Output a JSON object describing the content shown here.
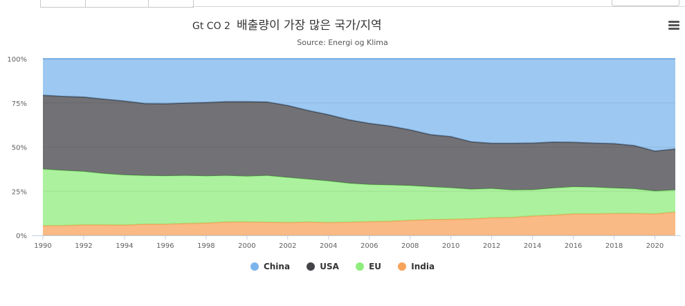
{
  "chart_data": {
    "type": "area",
    "stacking": "percent",
    "title_unit": "Gt CO 2",
    "title": "배출량이 가장 많은 국가/지역",
    "subtitle": "Source: Energi og Klima",
    "y_tick_labels": [
      "0%",
      "25%",
      "50%",
      "75%",
      "100%"
    ],
    "ylim": [
      0,
      100
    ],
    "x_tick_labels": [
      "1990",
      "1992",
      "1994",
      "1996",
      "1998",
      "2000",
      "2002",
      "2004",
      "2006",
      "2008",
      "2010",
      "2012",
      "2014",
      "2016",
      "2018",
      "2020"
    ],
    "x": [
      1990,
      1991,
      1992,
      1993,
      1994,
      1995,
      1996,
      1997,
      1998,
      1999,
      2000,
      2001,
      2002,
      2003,
      2004,
      2005,
      2006,
      2007,
      2008,
      2009,
      2010,
      2011,
      2012,
      2013,
      2014,
      2015,
      2016,
      2017,
      2018,
      2019,
      2020,
      2021
    ],
    "series": [
      {
        "name": "India",
        "color": "#f7a35c",
        "cumulative_percent": [
          5.5,
          5.6,
          6.0,
          6.0,
          5.9,
          6.4,
          6.4,
          6.8,
          7.0,
          7.6,
          7.6,
          7.5,
          7.3,
          7.6,
          7.3,
          7.5,
          7.8,
          8.0,
          8.5,
          9.0,
          9.1,
          9.4,
          10.0,
          10.2,
          11.0,
          11.5,
          12.2,
          12.2,
          12.4,
          12.4,
          12.2,
          13.2
        ]
      },
      {
        "name": "EU",
        "color": "#90ed7d",
        "cumulative_percent": [
          37.5,
          36.8,
          36.2,
          35.0,
          34.2,
          33.8,
          33.7,
          33.9,
          33.6,
          33.9,
          33.5,
          33.9,
          32.8,
          31.8,
          30.8,
          29.5,
          28.8,
          28.5,
          28.2,
          27.5,
          26.9,
          26.1,
          26.5,
          25.7,
          25.8,
          26.8,
          27.5,
          27.3,
          26.8,
          26.4,
          25.1,
          25.7
        ]
      },
      {
        "name": "USA",
        "color": "#434348",
        "cumulative_percent": [
          79.4,
          78.8,
          78.4,
          77.2,
          76.1,
          74.7,
          74.6,
          75.0,
          75.3,
          75.8,
          75.8,
          75.6,
          73.6,
          70.8,
          68.4,
          65.5,
          63.5,
          62.0,
          59.8,
          57.1,
          56.0,
          53.0,
          52.2,
          52.2,
          52.3,
          52.9,
          52.8,
          52.3,
          52.0,
          50.9,
          47.8,
          49.0
        ]
      },
      {
        "name": "China",
        "color": "#7cb5ec",
        "cumulative_percent": [
          100,
          100,
          100,
          100,
          100,
          100,
          100,
          100,
          100,
          100,
          100,
          100,
          100,
          100,
          100,
          100,
          100,
          100,
          100,
          100,
          100,
          100,
          100,
          100,
          100,
          100,
          100,
          100,
          100,
          100,
          100,
          100
        ]
      }
    ],
    "legend_order": [
      "China",
      "USA",
      "EU",
      "India"
    ],
    "grid": true,
    "legend_position": "bottom-center"
  },
  "menu_icon": "hamburger-menu-icon"
}
